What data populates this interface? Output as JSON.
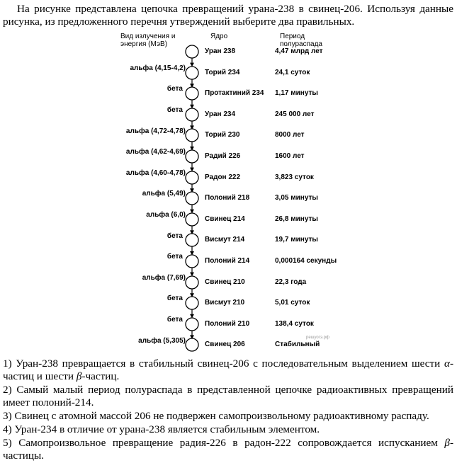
{
  "intro": "На рисунке представлена цепочка превращений урана-238 в свинец-206. Используя данные рисунка, из предложенного перечня утверждений выберите два правильных.",
  "figure": {
    "header_emission": "Вид излучения и энергия (МэВ)",
    "header_nucleus": "Ядро",
    "header_period": "Период полураспада",
    "nuclei": [
      {
        "name": "Уран 238",
        "half_life": "4,47 млрд лет"
      },
      {
        "name": "Торий 234",
        "half_life": "24,1 суток"
      },
      {
        "name": "Протактиний 234",
        "half_life": "1,17 минуты"
      },
      {
        "name": "Уран 234",
        "half_life": "245 000  лет"
      },
      {
        "name": "Торий 230",
        "half_life": "8000 лет"
      },
      {
        "name": "Радий 226",
        "half_life": "1600 лет"
      },
      {
        "name": "Радон 222",
        "half_life": "3,823 суток"
      },
      {
        "name": "Полоний 218",
        "half_life": "3,05 минуты"
      },
      {
        "name": "Свинец  214",
        "half_life": "26,8 минуты"
      },
      {
        "name": "Висмут 214",
        "half_life": "19,7 минуты"
      },
      {
        "name": "Полоний 214",
        "half_life": "0,000164 секунды"
      },
      {
        "name": "Свинец 210",
        "half_life": "22,3 года"
      },
      {
        "name": "Висмут 210",
        "half_life": "5,01 суток"
      },
      {
        "name": "Полоний 210",
        "half_life": "138,4 суток"
      },
      {
        "name": "Свинец 206",
        "half_life": "Стабильный"
      }
    ],
    "decays": [
      "альфа (4,15-4,2)",
      "бета",
      "бета",
      "альфа (4,72-4,78)",
      "альфа (4,62-4,69)",
      "альфа (4,60-4,78)",
      "альфа (5,49)",
      "альфа (6,0)",
      "бета",
      "бета",
      "альфа (7,69)",
      "бета",
      "бета",
      "альфа (5,305)"
    ],
    "watermark": "решуогэ.рф"
  },
  "answers": [
    {
      "pre": "1) Уран-238 превращается в стабильный свинец-206 с последовательным выделением шести ",
      "sym1": "α",
      "mid": "-частиц и шести ",
      "sym2": "β",
      "post": "-частиц."
    },
    {
      "pre": "2) Самый малый период полураспада в представленной цепочке радиоактивных превращений имеет полоний-214.",
      "sym1": "",
      "mid": "",
      "sym2": "",
      "post": ""
    },
    {
      "pre": "3) Свинец с атомной массой 206 не подвержен самопроизвольному радиоактивному распаду.",
      "sym1": "",
      "mid": "",
      "sym2": "",
      "post": ""
    },
    {
      "pre": "4) Уран-234 в отличие от урана-238 является стабильным элементом.",
      "sym1": "",
      "mid": "",
      "sym2": "",
      "post": ""
    },
    {
      "pre": "5) Самопроизвольное превращение радия-226 в радон-222 сопровождается испусканием ",
      "sym1": "β",
      "mid": "-частицы.",
      "sym2": "",
      "post": ""
    }
  ]
}
